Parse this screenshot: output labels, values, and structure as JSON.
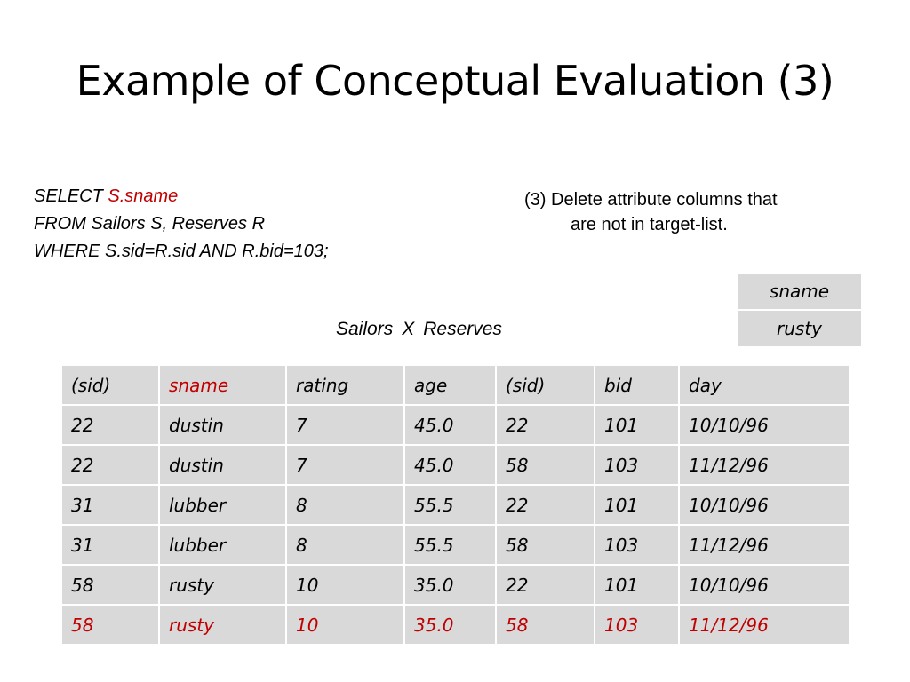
{
  "title": "Example of Conceptual Evaluation (3)",
  "sql": {
    "select_kw": "SELECT ",
    "select_target": "S.sname",
    "from_line": "FROM Sailors S, Reserves R",
    "where_line": "WHERE S.sid=R.sid AND R.bid=103;"
  },
  "note": {
    "line1": "(3) Delete attribute columns that",
    "line2": "are not in target-list."
  },
  "cross": {
    "left": "Sailors",
    "op": "X",
    "right": "Reserves"
  },
  "result_table": {
    "header": "sname",
    "value": "rusty"
  },
  "main_table": {
    "headers": [
      "(sid)",
      "sname",
      "rating",
      "age",
      "(sid)",
      "bid",
      "day"
    ],
    "rows": [
      [
        "22",
        "dustin",
        "7",
        "45.0",
        "22",
        "101",
        "10/10/96"
      ],
      [
        "22",
        "dustin",
        "7",
        "45.0",
        "58",
        "103",
        "11/12/96"
      ],
      [
        "31",
        "lubber",
        "8",
        "55.5",
        "22",
        "101",
        "10/10/96"
      ],
      [
        "31",
        "lubber",
        "8",
        "55.5",
        "58",
        "103",
        "11/12/96"
      ],
      [
        "58",
        "rusty",
        "10",
        "35.0",
        "22",
        "101",
        "10/10/96"
      ],
      [
        "58",
        "rusty",
        "10",
        "35.0",
        "58",
        "103",
        "11/12/96"
      ]
    ]
  },
  "colors": {
    "highlight": "#c00000",
    "cell_bg": "#d9d9d9"
  }
}
